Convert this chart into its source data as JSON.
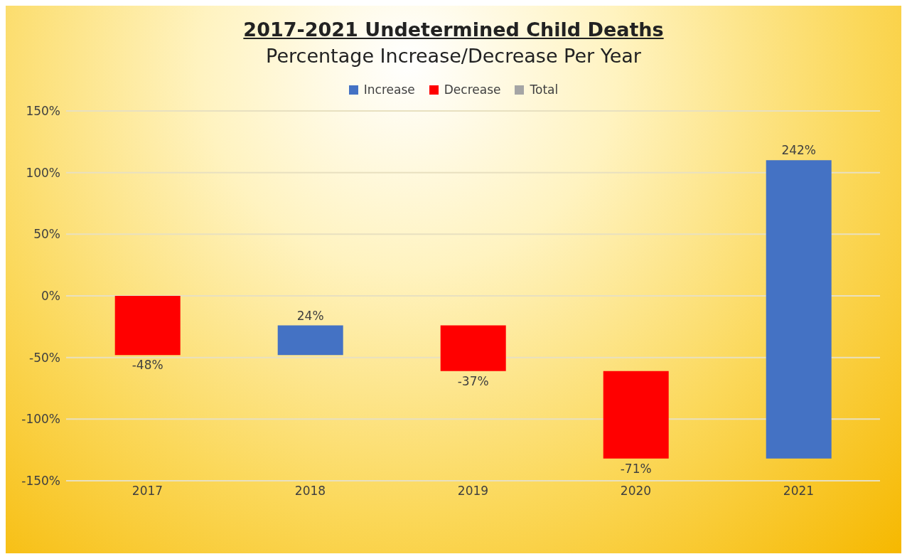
{
  "chart_data": {
    "type": "bar",
    "title": "2017-2021 Undetermined Child Deaths",
    "subtitle": "Percentage Increase/Decrease Per Year",
    "categories": [
      "2017",
      "2018",
      "2019",
      "2020",
      "2021"
    ],
    "series": [
      {
        "name": "Increase",
        "color": "#4472c4",
        "base": [
          null,
          -48,
          null,
          null,
          -132
        ],
        "values": [
          null,
          24,
          null,
          null,
          242
        ]
      },
      {
        "name": "Decrease",
        "color": "#ff0000",
        "base": [
          0,
          null,
          -24,
          -61,
          null
        ],
        "values": [
          -48,
          null,
          -37,
          -71,
          null
        ]
      },
      {
        "name": "Total",
        "color": "#a5a5a5",
        "values": [
          null,
          null,
          null,
          null,
          null
        ]
      }
    ],
    "value_labels": [
      "-48%",
      "24%",
      "-37%",
      "-71%",
      "242%"
    ],
    "ylim": [
      -150,
      150
    ],
    "yticks": [
      {
        "value": -150,
        "label": "-150%"
      },
      {
        "value": -100,
        "label": "-100%"
      },
      {
        "value": -50,
        "label": "-50%"
      },
      {
        "value": 0,
        "label": "0%"
      },
      {
        "value": 50,
        "label": "50%"
      },
      {
        "value": 100,
        "label": "100%"
      },
      {
        "value": 150,
        "label": "150%"
      }
    ],
    "grid": "y",
    "legend": "top"
  }
}
